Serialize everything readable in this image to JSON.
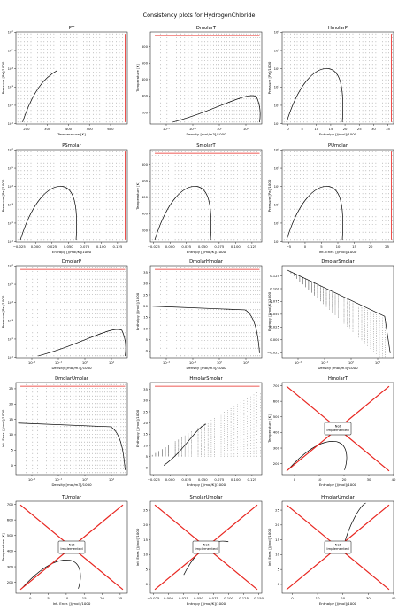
{
  "figure": {
    "title": "Consistency plots for HydrogenChloride"
  },
  "chart_data": [
    {
      "title": "PT",
      "type": "line",
      "xlabel": "Temperature [K]",
      "ylabel": "Pressure [Pa]/1000",
      "xlim": [
        150,
        680
      ],
      "xticks": [
        "200",
        "300",
        "400",
        "500",
        "600"
      ],
      "xtick_values": [
        200,
        300,
        400,
        500,
        600
      ],
      "ylog": true,
      "ylim_exp": [
        1,
        6
      ],
      "yticks": [
        "10¹",
        "10²",
        "10³",
        "10⁴",
        "10⁵",
        "10⁶"
      ],
      "grid": "points",
      "red_edge": "right",
      "curve": "saturation"
    },
    {
      "title": "DmolarT",
      "type": "line",
      "xlabel": "Density [mol/m3]/1000",
      "ylabel": "Temperature [K]",
      "xlog": true,
      "xlim_exp": [
        -2.6,
        1.6
      ],
      "xticks": [
        "10⁻²",
        "10⁻¹",
        "10⁰",
        "10¹"
      ],
      "xtick_values": [
        -2,
        -1,
        0,
        1
      ],
      "ylim": [
        130,
        690
      ],
      "yticks": [
        "200",
        "300",
        "400",
        "500",
        "600"
      ],
      "ytick_values": [
        200,
        300,
        400,
        500,
        600
      ],
      "grid": "points",
      "red_edge": "top",
      "curve": "dome-right"
    },
    {
      "title": "HmolarP",
      "type": "line",
      "xlabel": "Enthalpy [J/mol]/1000",
      "ylabel": "Pressure [Pa]/1000",
      "xlim": [
        -2,
        37
      ],
      "xticks": [
        "0",
        "5",
        "10",
        "15",
        "20",
        "25",
        "30",
        "35"
      ],
      "xtick_values": [
        0,
        5,
        10,
        15,
        20,
        25,
        30,
        35
      ],
      "ylog": true,
      "ylim_exp": [
        1,
        6
      ],
      "yticks": [
        "10¹",
        "10²",
        "10³",
        "10⁴",
        "10⁵",
        "10⁶"
      ],
      "grid": "points",
      "red_edge": "right",
      "curve": "dome"
    },
    {
      "title": "PSmolar",
      "type": "line",
      "xlabel": "Entropy [J/mol/K]/1000",
      "ylabel": "Pressure [Pa]/1000",
      "xlim": [
        -0.03,
        0.14
      ],
      "xticks": [
        "−0.025",
        "0.000",
        "0.025",
        "0.050",
        "0.075",
        "0.100",
        "0.125"
      ],
      "xtick_values": [
        -0.025,
        0,
        0.025,
        0.05,
        0.075,
        0.1,
        0.125
      ],
      "ylog": true,
      "ylim_exp": [
        1,
        6
      ],
      "yticks": [
        "10¹",
        "10²",
        "10³",
        "10⁴",
        "10⁵",
        "10⁶"
      ],
      "grid": "points",
      "red_edge": "right",
      "curve": "dome"
    },
    {
      "title": "SmolarT",
      "type": "line",
      "xlabel": "Entropy [J/mol/K]/1000",
      "ylabel": "Temperature [K]",
      "xlim": [
        -0.03,
        0.14
      ],
      "xticks": [
        "−0.025",
        "0.000",
        "0.025",
        "0.050",
        "0.075",
        "0.100",
        "0.125"
      ],
      "xtick_values": [
        -0.025,
        0,
        0.025,
        0.05,
        0.075,
        0.1,
        0.125
      ],
      "ylim": [
        130,
        690
      ],
      "yticks": [
        "200",
        "300",
        "400",
        "500",
        "600"
      ],
      "ytick_values": [
        200,
        300,
        400,
        500,
        600
      ],
      "grid": "points",
      "red_edge": "top",
      "curve": "dome"
    },
    {
      "title": "PUmolar",
      "type": "line",
      "xlabel": "Int. Ener. [J/mol]/1000",
      "ylabel": "Pressure [Pa]/1000",
      "xlim": [
        -7,
        27
      ],
      "xticks": [
        "−5",
        "0",
        "5",
        "10",
        "15",
        "20",
        "25"
      ],
      "xtick_values": [
        -5,
        0,
        5,
        10,
        15,
        20,
        25
      ],
      "ylog": true,
      "ylim_exp": [
        1,
        6
      ],
      "yticks": [
        "10¹",
        "10²",
        "10³",
        "10⁴",
        "10⁵",
        "10⁶"
      ],
      "grid": "points",
      "red_edge": "right",
      "curve": "dome"
    },
    {
      "title": "DmolarP",
      "type": "line",
      "xlabel": "Density [mol/m3]/1000",
      "ylabel": "Pressure [Pa]/1000",
      "xlog": true,
      "xlim_exp": [
        -2.6,
        1.6
      ],
      "xticks": [
        "10⁻²",
        "10⁻¹",
        "10⁰",
        "10¹"
      ],
      "xtick_values": [
        -2,
        -1,
        0,
        1
      ],
      "ylog": true,
      "ylim_exp": [
        1,
        6
      ],
      "yticks": [
        "10¹",
        "10²",
        "10³",
        "10⁴",
        "10⁵",
        "10⁶"
      ],
      "grid": "points",
      "red_edge": "top",
      "curve": "dome-right"
    },
    {
      "title": "DmolarHmolar",
      "type": "line",
      "xlabel": "Density [mol/m3]/1000",
      "ylabel": "Enthalpy [J/mol]/1000",
      "xlog": true,
      "xlim_exp": [
        -2.6,
        1.6
      ],
      "xticks": [
        "10⁻²",
        "10⁻¹",
        "10⁰",
        "10¹"
      ],
      "xtick_values": [
        -2,
        -1,
        0,
        1
      ],
      "ylim": [
        -3,
        38
      ],
      "yticks": [
        "0",
        "5",
        "10",
        "15",
        "20",
        "25",
        "30",
        "35"
      ],
      "ytick_values": [
        0,
        5,
        10,
        15,
        20,
        25,
        30,
        35
      ],
      "grid": "points",
      "red_edge": "top",
      "curve": "band"
    },
    {
      "title": "DmolarSmolar",
      "type": "line",
      "xlabel": "Density [mol/m3]/1000",
      "ylabel": "Entropy [J/mol/K]/1000",
      "xlog": true,
      "xlim_exp": [
        -2.6,
        1.6
      ],
      "xticks": [
        "10⁻²",
        "10⁻¹",
        "10⁰",
        "10¹"
      ],
      "xtick_values": [
        -2,
        -1,
        0,
        1
      ],
      "ylim": [
        -0.035,
        0.145
      ],
      "yticks": [
        "−0.025",
        "0.000",
        "0.025",
        "0.050",
        "0.075",
        "0.100",
        "0.125"
      ],
      "ytick_values": [
        -0.025,
        0,
        0.025,
        0.05,
        0.075,
        0.1,
        0.125
      ],
      "grid": "points",
      "red_edge": "none",
      "curve": "fan"
    },
    {
      "title": "DmolarUmolar",
      "type": "line",
      "xlabel": "Density [mol/m3]/1000",
      "ylabel": "Int. Ener. [J/mol]/1000",
      "xlog": true,
      "xlim_exp": [
        -2.6,
        1.6
      ],
      "xticks": [
        "10⁻²",
        "10⁻¹",
        "10⁰",
        "10¹"
      ],
      "xtick_values": [
        -2,
        -1,
        0,
        1
      ],
      "ylim": [
        -3,
        27
      ],
      "yticks": [
        "0",
        "5",
        "10",
        "15",
        "20",
        "25"
      ],
      "ytick_values": [
        0,
        5,
        10,
        15,
        20,
        25
      ],
      "grid": "points",
      "red_edge": "top",
      "curve": "band"
    },
    {
      "title": "HmolarSmolar",
      "type": "line",
      "xlabel": "Entropy [J/mol/K]/1000",
      "ylabel": "Enthalpy [J/mol]/1000",
      "xlim": [
        -0.03,
        0.14
      ],
      "xticks": [
        "−0.025",
        "0.000",
        "0.025",
        "0.050",
        "0.075",
        "0.100",
        "0.125"
      ],
      "xtick_values": [
        -0.025,
        0,
        0.025,
        0.05,
        0.075,
        0.1,
        0.125
      ],
      "ylim": [
        -3,
        38
      ],
      "yticks": [
        "0",
        "5",
        "10",
        "15",
        "20",
        "25",
        "30",
        "35"
      ],
      "ytick_values": [
        0,
        5,
        10,
        15,
        20,
        25,
        30,
        35
      ],
      "grid": "points",
      "red_edge": "top",
      "curve": "hs"
    },
    {
      "title": "HmolarT",
      "type": "line",
      "xlabel": "Enthalpy [J/mol]/1000",
      "ylabel": "Temperature [K]",
      "xlim": [
        -5,
        40
      ],
      "xticks": [
        "0",
        "10",
        "20",
        "30",
        "40"
      ],
      "xtick_values": [
        0,
        10,
        20,
        30,
        40
      ],
      "ylim": [
        130,
        720
      ],
      "yticks": [
        "200",
        "300",
        "400",
        "500",
        "600",
        "700"
      ],
      "ytick_values": [
        200,
        300,
        400,
        500,
        600,
        700
      ],
      "grid": "none",
      "red_edge": "cross",
      "curve": "dome-small",
      "note": "Not\nImplemented"
    },
    {
      "title": "TUmolar",
      "type": "line",
      "xlabel": "Int. Ener. [J/mol]/1000",
      "ylabel": "Temperature [K]",
      "xlim": [
        -4,
        27
      ],
      "xticks": [
        "0",
        "5",
        "10",
        "15",
        "20",
        "25"
      ],
      "xtick_values": [
        0,
        5,
        10,
        15,
        20,
        25
      ],
      "ylim": [
        130,
        720
      ],
      "yticks": [
        "200",
        "300",
        "400",
        "500",
        "600",
        "700"
      ],
      "ytick_values": [
        200,
        300,
        400,
        500,
        600,
        700
      ],
      "grid": "none",
      "red_edge": "cross",
      "curve": "dome-small",
      "note": "Not\nImplemented"
    },
    {
      "title": "SmolarUmolar",
      "type": "line",
      "xlabel": "Entropy [J/mol/K]/1000",
      "ylabel": "Int. Ener. [J/mol]/1000",
      "xlim": [
        -0.03,
        0.155
      ],
      "xticks": [
        "−0.025",
        "0.000",
        "0.025",
        "0.050",
        "0.075",
        "0.100",
        "0.125",
        "0.150"
      ],
      "xtick_values": [
        -0.025,
        0,
        0.025,
        0.05,
        0.075,
        0.1,
        0.125,
        0.15
      ],
      "ylim": [
        -3,
        28
      ],
      "yticks": [
        "0",
        "5",
        "10",
        "15",
        "20",
        "25"
      ],
      "ytick_values": [
        0,
        5,
        10,
        15,
        20,
        25
      ],
      "grid": "none",
      "red_edge": "cross",
      "curve": "su",
      "note": "Not\nImplemented"
    },
    {
      "title": "HmolarUmolar",
      "type": "line",
      "xlabel": "Enthalpy [J/mol]/1000",
      "ylabel": "Int. Ener. [J/mol]/1000",
      "xlim": [
        -4,
        40
      ],
      "xticks": [
        "0",
        "10",
        "20",
        "30",
        "40"
      ],
      "xtick_values": [
        0,
        10,
        20,
        30,
        40
      ],
      "ylim": [
        -3,
        28
      ],
      "yticks": [
        "0",
        "5",
        "10",
        "15",
        "20",
        "25"
      ],
      "ytick_values": [
        0,
        5,
        10,
        15,
        20,
        25
      ],
      "grid": "none",
      "red_edge": "cross",
      "curve": "hu",
      "note": "Not\nImplemented"
    }
  ]
}
